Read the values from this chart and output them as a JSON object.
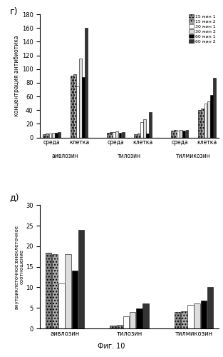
{
  "top_panel_label": "г)",
  "bottom_panel_label": "д)",
  "figure_label": "Фиг. 10",
  "top": {
    "ylabel": "концентрация антибиотика",
    "ylim": [
      0,
      180
    ],
    "yticks": [
      0,
      20,
      40,
      60,
      80,
      100,
      120,
      140,
      160,
      180
    ],
    "groups": [
      "аивлозин",
      "тилозин",
      "тилмикозин"
    ],
    "subgroups": [
      "среда",
      "клетка"
    ],
    "series_labels": [
      "15 мин 1",
      "15 мин 2",
      "30 мин 1",
      "30 мин 2",
      "60 мин 1",
      "60 мин 2"
    ],
    "face_colors": [
      "#888888",
      "#aaaaaa",
      "#ffffff",
      "#dddddd",
      "#000000",
      "#333333"
    ],
    "hatches": [
      "....",
      "....",
      "",
      "",
      "",
      ""
    ],
    "data": {
      "аивлозин": {
        "среда": [
          5,
          6,
          6,
          7,
          7,
          8
        ],
        "клетка": [
          90,
          92,
          75,
          115,
          88,
          160
        ]
      },
      "тилозин": {
        "среда": [
          7,
          8,
          8,
          9,
          7,
          8
        ],
        "клетка": [
          5,
          6,
          22,
          27,
          6,
          37
        ]
      },
      "тилмикозин": {
        "среда": [
          10,
          11,
          10,
          11,
          10,
          11
        ],
        "клетка": [
          40,
          42,
          50,
          53,
          62,
          87
        ]
      }
    }
  },
  "bottom": {
    "ylabel_line1": "внутриклеточное:внеклеточное",
    "ylabel_line2": "соотношение",
    "ylim": [
      0,
      30
    ],
    "yticks": [
      0,
      5,
      10,
      15,
      20,
      25,
      30
    ],
    "groups": [
      "аивлозин",
      "тилозин",
      "тилмикозин"
    ],
    "data": {
      "аивлозин": [
        18.5,
        18.0,
        11.0,
        18.0,
        14.0,
        24.0
      ],
      "тилозин": [
        0.7,
        0.8,
        3.0,
        4.0,
        4.8,
        6.0
      ],
      "тилмикозин": [
        4.0,
        4.2,
        5.8,
        6.0,
        6.8,
        10.0
      ]
    }
  }
}
